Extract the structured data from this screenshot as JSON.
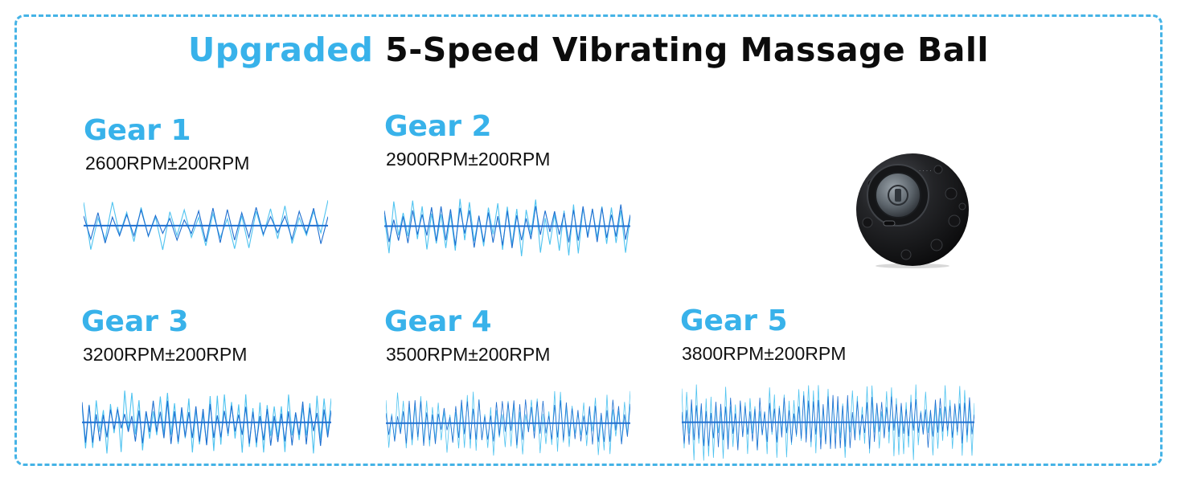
{
  "title": {
    "accent": "Upgraded",
    "main": "5-Speed Vibrating Massage Ball"
  },
  "gears": [
    {
      "label": "Gear 1",
      "rpm": "2600RPM±200RPM",
      "speed": 1
    },
    {
      "label": "Gear 2",
      "rpm": "2900RPM±200RPM",
      "speed": 2
    },
    {
      "label": "Gear 3",
      "rpm": "3200RPM±200RPM",
      "speed": 3
    },
    {
      "label": "Gear 4",
      "rpm": "3500RPM±200RPM",
      "speed": 4
    },
    {
      "label": "Gear 5",
      "rpm": "3800RPM±200RPM",
      "speed": 5
    }
  ],
  "colors": {
    "accent": "#38b2ea",
    "border": "#45b3e6",
    "wave_dark": "#1f6fd0",
    "wave_light": "#4fc3f0",
    "ball": "#1c1d20"
  },
  "product_image": "vibrating-massage-ball"
}
